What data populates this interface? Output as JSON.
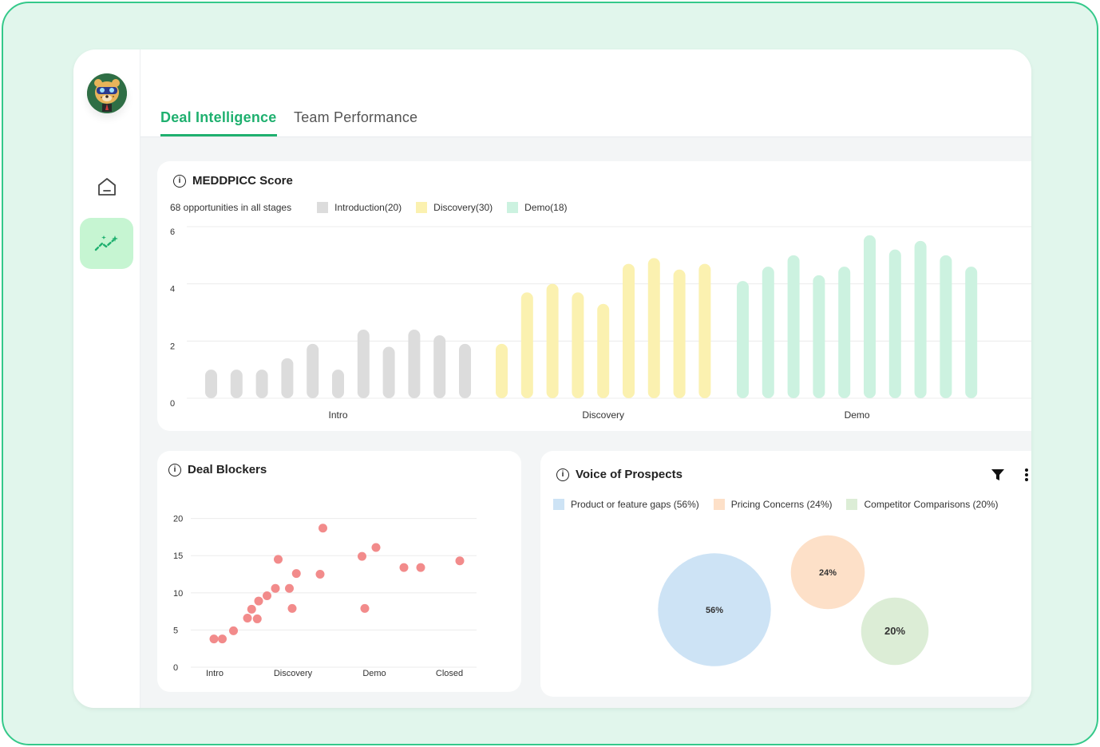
{
  "nav": {
    "avatar_icon": "leopard-avatar",
    "home_icon": "home-icon",
    "insights_icon": "sparkle-trend-icon"
  },
  "tabs": [
    {
      "label": "Deal Intelligence",
      "active": true
    },
    {
      "label": "Team Performance",
      "active": false
    }
  ],
  "colors": {
    "accent": "#1fb06f",
    "frame_bg": "#e1f6ec",
    "intro": "#dcdcdc",
    "discovery": "#fbf1b0",
    "demo": "#ccf2e0",
    "dots": "#f28b8b",
    "gaps": "#cde3f5",
    "pricing": "#fde0c8",
    "competitor": "#dcedd6"
  },
  "meddpicc": {
    "title": "MEDDPICC Score",
    "summary": "68 opportunities in all stages",
    "legend": [
      "Introduction(20)",
      "Discovery(30)",
      "Demo(18)"
    ],
    "chart_data": {
      "type": "bar",
      "yticks": [
        "0",
        "2",
        "4",
        "6"
      ],
      "ylim": [
        0,
        6
      ],
      "groups": [
        {
          "name": "Intro",
          "values": [
            1.0,
            1.0,
            1.0,
            1.4,
            1.9,
            1.0,
            2.4,
            1.8,
            2.4,
            2.2,
            1.9
          ]
        },
        {
          "name": "Discovery",
          "values": [
            1.9,
            3.7,
            4.0,
            3.7,
            3.3,
            4.7,
            4.9,
            4.5,
            4.7
          ]
        },
        {
          "name": "Demo",
          "values": [
            4.1,
            4.6,
            5.0,
            4.3,
            4.6,
            5.7,
            5.2,
            5.5,
            5.0,
            4.6
          ]
        }
      ]
    }
  },
  "blockers": {
    "title": "Deal Blockers",
    "chart_data": {
      "type": "scatter",
      "yticks": [
        "0",
        "5",
        "10",
        "15",
        "20"
      ],
      "ylim": [
        0,
        22
      ],
      "categories": [
        "Intro",
        "Discovery",
        "Demo",
        "Closed"
      ],
      "points": [
        [
          0.04,
          3.8
        ],
        [
          0.1,
          3.8
        ],
        [
          0.18,
          4.9
        ],
        [
          0.28,
          6.6
        ],
        [
          0.31,
          7.8
        ],
        [
          0.35,
          6.5
        ],
        [
          0.36,
          8.9
        ],
        [
          0.42,
          9.6
        ],
        [
          0.48,
          10.6
        ],
        [
          0.5,
          14.5
        ],
        [
          0.58,
          10.6
        ],
        [
          0.6,
          7.9
        ],
        [
          0.63,
          12.6
        ],
        [
          0.8,
          12.5
        ],
        [
          0.82,
          18.7
        ],
        [
          1.1,
          14.9
        ],
        [
          1.12,
          7.9
        ],
        [
          1.2,
          16.1
        ],
        [
          1.4,
          13.4
        ],
        [
          1.52,
          13.4
        ],
        [
          1.8,
          14.3
        ]
      ]
    }
  },
  "voice": {
    "title": "Voice of Prospects",
    "filter_icon": "filter-icon",
    "more_icon": "kebab-menu-icon",
    "legend": [
      "Product or feature gaps (56%)",
      "Pricing Concerns (24%)",
      "Competitor Comparisons (20%)"
    ],
    "chart_data": {
      "type": "bubble",
      "bubbles": [
        {
          "label": "56%",
          "value": 56
        },
        {
          "label": "24%",
          "value": 24
        },
        {
          "label": "20%",
          "value": 20
        }
      ]
    }
  }
}
